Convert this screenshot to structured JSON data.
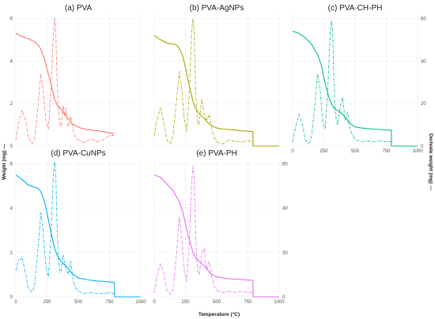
{
  "figure": {
    "xlabel": "Temperature (°C)",
    "ylabel_left": "Weight (mg) —",
    "ylabel_right": "Derivate weight (mg) ---"
  },
  "chart_data": [
    {
      "type": "line",
      "title": "(a) PVA",
      "color": "#f8766d",
      "xlim": [
        0,
        1000
      ],
      "ylim": [
        0,
        6.2
      ],
      "yticks": [
        0,
        2,
        4,
        6
      ],
      "series": [
        {
          "style": "solid",
          "x": [
            0,
            50,
            100,
            150,
            180,
            200,
            230,
            250,
            270,
            290,
            310,
            330,
            350,
            380,
            400,
            430,
            450,
            480,
            500,
            520,
            550,
            600,
            650,
            700,
            750,
            790
          ],
          "y": [
            5.3,
            5.15,
            5.05,
            4.9,
            4.75,
            4.55,
            4.1,
            3.6,
            3.2,
            2.7,
            2.2,
            1.95,
            1.8,
            1.6,
            1.45,
            1.2,
            1.05,
            0.95,
            0.9,
            0.85,
            0.8,
            0.75,
            0.72,
            0.68,
            0.62,
            0.58
          ]
        },
        {
          "style": "dashed",
          "x": [
            0,
            20,
            50,
            80,
            100,
            130,
            150,
            180,
            200,
            220,
            240,
            260,
            280,
            300,
            310,
            320,
            330,
            340,
            350,
            360,
            370,
            380,
            390,
            400,
            410,
            420,
            430,
            440,
            450,
            460,
            470,
            480,
            500,
            550,
            600,
            650,
            700,
            750,
            790
          ],
          "y": [
            0.3,
            1.0,
            1.7,
            1.2,
            0.4,
            0.1,
            0.3,
            2.0,
            3.4,
            2.6,
            1.2,
            0.8,
            2.5,
            5.2,
            6.0,
            5.4,
            3.2,
            1.8,
            1.2,
            0.9,
            1.3,
            1.9,
            1.4,
            1.8,
            1.2,
            0.9,
            1.1,
            1.4,
            1.0,
            0.7,
            0.5,
            0.4,
            0.3,
            0.15,
            0.35,
            0.2,
            0.3,
            0.5,
            0.5
          ]
        }
      ]
    },
    {
      "type": "line",
      "title": "(b) PVA-AgNPs",
      "color": "#a3a500",
      "xlim": [
        0,
        1000
      ],
      "ylim": [
        0,
        6.2
      ],
      "yticks": [
        0,
        2,
        4,
        6
      ],
      "series": [
        {
          "style": "solid",
          "x": [
            0,
            50,
            100,
            150,
            180,
            200,
            230,
            250,
            270,
            290,
            310,
            330,
            350,
            380,
            400,
            430,
            450,
            500,
            550,
            600,
            650,
            700,
            750,
            790,
            791,
            850,
            950,
            1000
          ],
          "y": [
            5.2,
            5.0,
            4.85,
            4.8,
            4.75,
            4.6,
            4.2,
            3.7,
            3.1,
            2.6,
            2.1,
            1.8,
            1.6,
            1.4,
            1.3,
            1.1,
            1.0,
            0.85,
            0.8,
            0.78,
            0.75,
            0.72,
            0.7,
            0.68,
            0.0,
            0.0,
            0.0,
            0.0
          ]
        },
        {
          "style": "dashed",
          "x": [
            0,
            20,
            50,
            80,
            100,
            130,
            150,
            180,
            200,
            220,
            240,
            260,
            280,
            300,
            310,
            320,
            330,
            340,
            350,
            360,
            380,
            400,
            420,
            440,
            460,
            480,
            500,
            550,
            600,
            650,
            700,
            750,
            790,
            791,
            850,
            950,
            1000
          ],
          "y": [
            0.5,
            1.2,
            1.8,
            1.0,
            0.3,
            0.1,
            0.5,
            2.2,
            3.5,
            2.7,
            1.3,
            0.7,
            2.4,
            5.4,
            6.0,
            5.3,
            3.0,
            1.6,
            1.0,
            1.1,
            2.2,
            1.5,
            1.2,
            1.5,
            0.8,
            0.4,
            0.2,
            0.1,
            0.3,
            0.2,
            0.2,
            0.25,
            0.2,
            0.0,
            0.0,
            0.0,
            0.0
          ]
        }
      ]
    },
    {
      "type": "line",
      "title": "(c) PVA-CH-PH",
      "color": "#00bf7d",
      "xlim": [
        0,
        1000
      ],
      "ylim": [
        0,
        62
      ],
      "yticks": [
        0,
        20,
        40,
        60
      ],
      "series": [
        {
          "style": "solid",
          "x": [
            0,
            50,
            100,
            150,
            200,
            230,
            250,
            270,
            290,
            310,
            330,
            350,
            380,
            400,
            430,
            450,
            500,
            550,
            600,
            650,
            700,
            750,
            790,
            791,
            850,
            950,
            1000
          ],
          "y": [
            54,
            53,
            51,
            48,
            43,
            38,
            32,
            27,
            23,
            20,
            18,
            17,
            16,
            15,
            13,
            11,
            9,
            8.5,
            8.2,
            8,
            7.8,
            7.6,
            7.5,
            0.0,
            0.0,
            0.0,
            0.0
          ]
        },
        {
          "style": "dashed",
          "x": [
            0,
            20,
            50,
            80,
            100,
            130,
            150,
            180,
            200,
            220,
            240,
            260,
            280,
            300,
            310,
            320,
            330,
            340,
            350,
            360,
            380,
            400,
            420,
            440,
            460,
            480,
            500,
            550,
            600,
            650,
            700,
            750,
            790,
            791,
            850,
            950,
            1000
          ],
          "y": [
            2,
            8,
            15,
            10,
            3,
            1,
            4,
            20,
            34,
            26,
            12,
            8,
            25,
            52,
            59,
            55,
            32,
            17,
            12,
            10,
            18,
            23,
            12,
            16,
            8,
            5,
            3,
            2,
            2.5,
            2,
            2.5,
            2,
            2,
            0.0,
            0.0,
            0.0,
            0.0
          ]
        }
      ]
    },
    {
      "type": "line",
      "title": "(d) PVA-CuNPs",
      "color": "#00b0f6",
      "xlim": [
        0,
        1000
      ],
      "ylim": [
        0,
        6.2
      ],
      "yticks": [
        0,
        2,
        4,
        6
      ],
      "series": [
        {
          "style": "solid",
          "x": [
            0,
            50,
            100,
            150,
            180,
            200,
            230,
            250,
            270,
            290,
            310,
            330,
            350,
            380,
            400,
            430,
            450,
            500,
            550,
            600,
            650,
            700,
            750,
            790,
            791,
            850,
            950,
            1000
          ],
          "y": [
            5.5,
            5.3,
            5.05,
            4.95,
            4.9,
            4.75,
            4.3,
            3.8,
            3.2,
            2.7,
            2.2,
            1.9,
            1.7,
            1.5,
            1.4,
            1.2,
            1.05,
            0.85,
            0.8,
            0.75,
            0.72,
            0.7,
            0.68,
            0.65,
            0.0,
            0.0,
            0.0,
            0.0
          ]
        },
        {
          "style": "dashed",
          "x": [
            0,
            20,
            50,
            80,
            100,
            130,
            150,
            180,
            200,
            220,
            240,
            260,
            280,
            300,
            310,
            320,
            330,
            340,
            350,
            360,
            380,
            400,
            420,
            440,
            460,
            480,
            500,
            550,
            600,
            650,
            700,
            750,
            790,
            791,
            850,
            950,
            1000
          ],
          "y": [
            1.2,
            1.6,
            1.8,
            1.0,
            0.4,
            0.2,
            0.5,
            2.3,
            3.8,
            2.9,
            1.4,
            0.9,
            2.5,
            5.5,
            6.1,
            5.5,
            3.3,
            1.7,
            1.2,
            1.1,
            1.9,
            1.3,
            1.0,
            1.6,
            0.7,
            0.4,
            0.25,
            0.15,
            0.2,
            0.15,
            0.15,
            0.2,
            0.15,
            0.0,
            0.0,
            0.0,
            0.0
          ]
        }
      ]
    },
    {
      "type": "line",
      "title": "(e) PVA-PH",
      "color": "#e76bf3",
      "xlim": [
        0,
        1000
      ],
      "ylim": [
        0,
        62
      ],
      "yticks": [
        0,
        20,
        40,
        60
      ],
      "series": [
        {
          "style": "solid",
          "x": [
            0,
            50,
            100,
            150,
            200,
            230,
            250,
            270,
            290,
            310,
            330,
            350,
            380,
            400,
            430,
            450,
            500,
            550,
            600,
            650,
            700,
            750,
            790,
            791,
            850,
            950,
            1000
          ],
          "y": [
            55,
            54,
            51,
            48,
            43,
            38,
            33,
            28,
            24,
            20,
            18,
            16.5,
            15,
            14,
            12,
            10.5,
            9,
            8.5,
            8.2,
            8,
            7.8,
            7.6,
            7.5,
            0.0,
            0.0,
            0.0,
            0.0
          ]
        },
        {
          "style": "dashed",
          "x": [
            0,
            20,
            50,
            80,
            100,
            130,
            150,
            180,
            200,
            220,
            240,
            260,
            280,
            300,
            310,
            320,
            330,
            340,
            350,
            360,
            380,
            400,
            420,
            440,
            460,
            480,
            500,
            550,
            600,
            650,
            700,
            750,
            790,
            791,
            850,
            950,
            1000
          ],
          "y": [
            2,
            9,
            15,
            10,
            3,
            1,
            3,
            20,
            36,
            27,
            12,
            7,
            24,
            52,
            59,
            54,
            31,
            17,
            11,
            10,
            19,
            22,
            12,
            16,
            9,
            5,
            3,
            2,
            2.5,
            2,
            2.5,
            2,
            2,
            0.0,
            0.0,
            0.0,
            0.0
          ]
        }
      ]
    }
  ]
}
